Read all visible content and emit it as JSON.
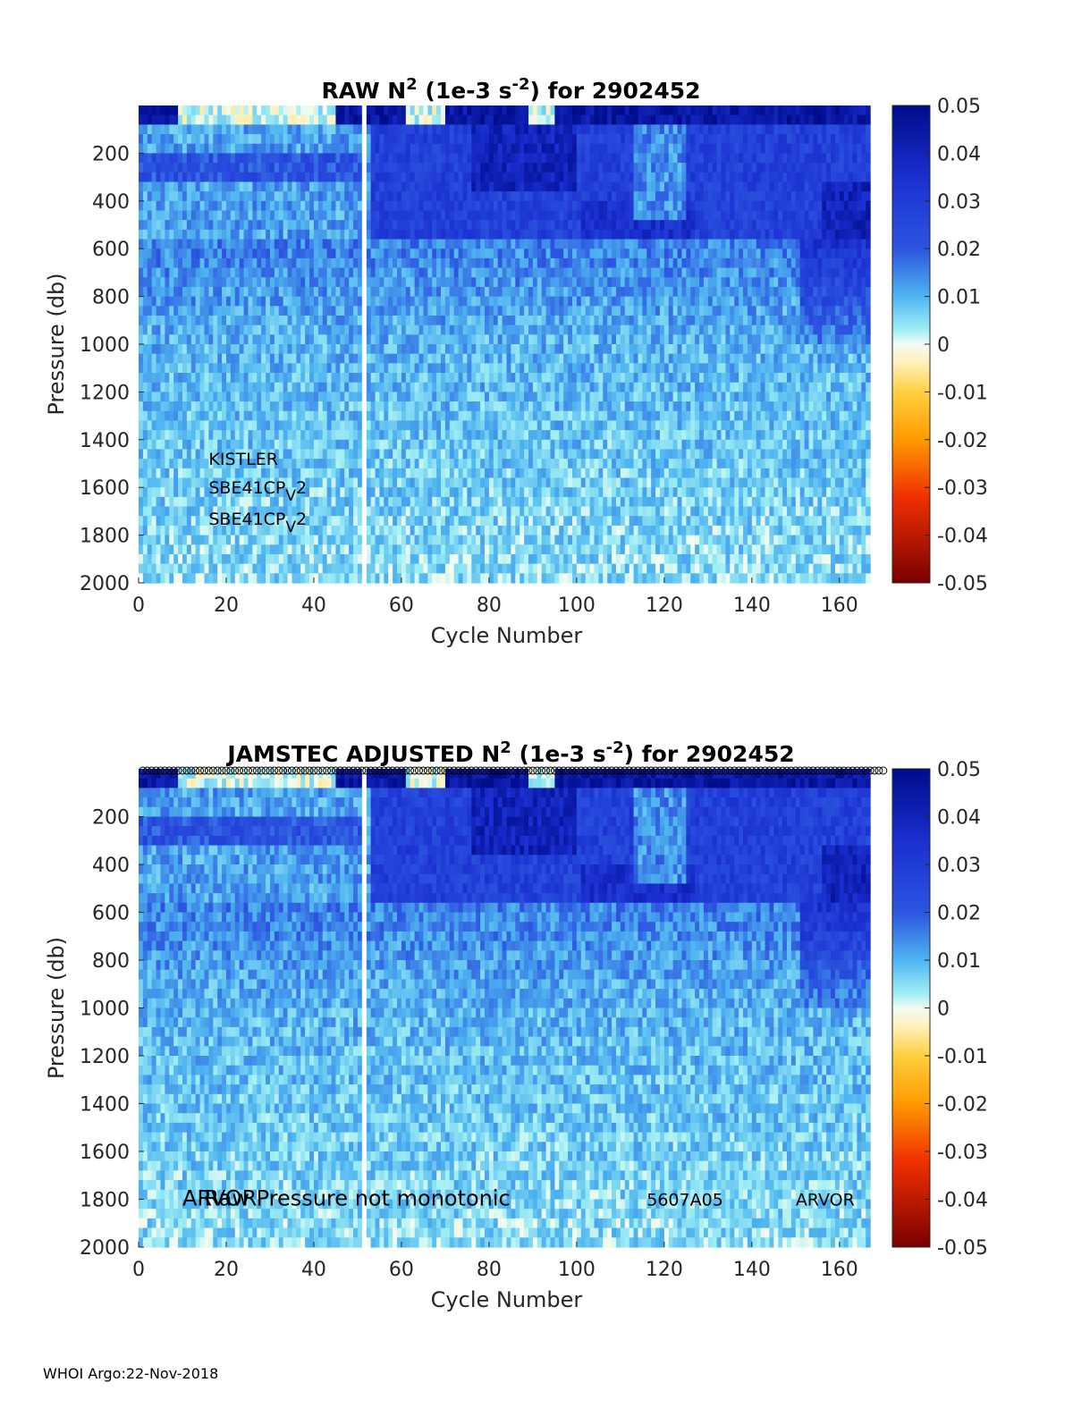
{
  "footer": "WHOI Argo:22-Nov-2018",
  "colors": {
    "deep_blue": "#000c8a",
    "mid_blue": "#2c55e0",
    "light_blue": "#4fb5f0",
    "cyan": "#8fe8f4",
    "pale": "#d8f7f2",
    "cream": "#fff3c4",
    "orange": "#ff9a00",
    "red": "#e02000",
    "dark_red": "#7a0000"
  },
  "chart_data": [
    {
      "type": "heatmap",
      "title_parts": [
        "RAW N",
        "2",
        " (1e-3 s",
        "-2",
        ") for 2902452"
      ],
      "xlabel": "Cycle Number",
      "ylabel": "Pressure (db)",
      "xlim": [
        0,
        168
      ],
      "ylim": [
        0,
        2000
      ],
      "y_reversed": true,
      "xticks": [
        "0",
        "20",
        "40",
        "60",
        "80",
        "100",
        "120",
        "140",
        "160"
      ],
      "yticks": [
        "200",
        "400",
        "600",
        "800",
        "1000",
        "1200",
        "1400",
        "1600",
        "1800",
        "2000"
      ],
      "colorbar": {
        "range": [
          -0.05,
          0.05
        ],
        "ticks": [
          "0.05",
          "0.04",
          "0.03",
          "0.02",
          "0.01",
          "0",
          "-0.01",
          "-0.02",
          "-0.03",
          "-0.04",
          "-0.05"
        ]
      },
      "gap_cycle": 51,
      "annotations": [
        {
          "text": "KISTLER",
          "x": 16,
          "y": 1480
        },
        {
          "text": "SBE41CP",
          "sub": "V",
          "tail": "2",
          "x": 16,
          "y": 1600
        },
        {
          "text": "SBE41CP",
          "sub": "V",
          "tail": "2",
          "x": 16,
          "y": 1730
        }
      ]
    },
    {
      "type": "heatmap",
      "title_parts": [
        "JAMSTEC  ADJUSTED N",
        "2",
        " (1e-3 s",
        "-2",
        ") for 2902452"
      ],
      "xlabel": "Cycle Number",
      "ylabel": "Pressure (db)",
      "xlim": [
        0,
        168
      ],
      "ylim": [
        0,
        2000
      ],
      "y_reversed": true,
      "xticks": [
        "0",
        "20",
        "40",
        "60",
        "80",
        "100",
        "120",
        "140",
        "160"
      ],
      "yticks": [
        "200",
        "400",
        "600",
        "800",
        "1000",
        "1200",
        "1400",
        "1600",
        "1800",
        "2000"
      ],
      "colorbar": {
        "range": [
          -0.05,
          0.05
        ],
        "ticks": [
          "0.05",
          "0.04",
          "0.03",
          "0.02",
          "0.01",
          "0",
          "-0.01",
          "-0.02",
          "-0.03",
          "-0.04",
          "-0.05"
        ]
      },
      "gap_cycle": 51,
      "top_markers": "circles",
      "annotations": [
        {
          "text": "ARVOR",
          "x": 10,
          "y": 1800,
          "size": "large"
        },
        {
          "text": "Raw Pressure not monotonic",
          "x": 15,
          "y": 1800,
          "size": "large"
        },
        {
          "text": "5607A05",
          "x": 116,
          "y": 1800
        },
        {
          "text": "ARVOR",
          "x": 150,
          "y": 1800
        }
      ]
    }
  ]
}
